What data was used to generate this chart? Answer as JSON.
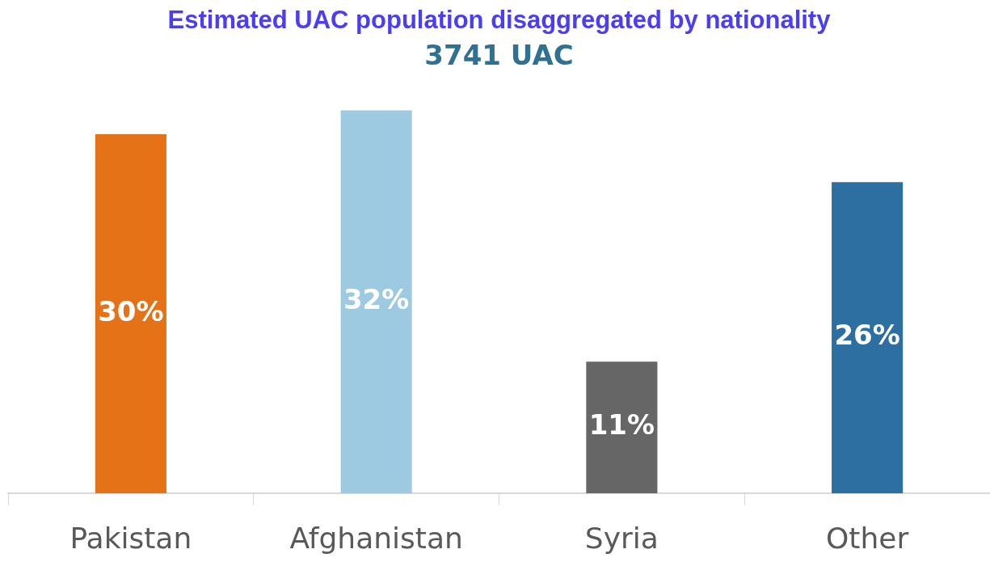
{
  "chart_data": {
    "type": "bar",
    "title": "Estimated UAC population disaggregated by nationality",
    "subtitle": "3741 UAC",
    "categories": [
      "Pakistan",
      "Afghanistan",
      "Syria",
      "Other"
    ],
    "values": [
      30,
      32,
      11,
      26
    ],
    "value_labels": [
      "30%",
      "32%",
      "11%",
      "26%"
    ],
    "colors": [
      "#e57217",
      "#9ecae1",
      "#666666",
      "#2e6fa1"
    ]
  }
}
